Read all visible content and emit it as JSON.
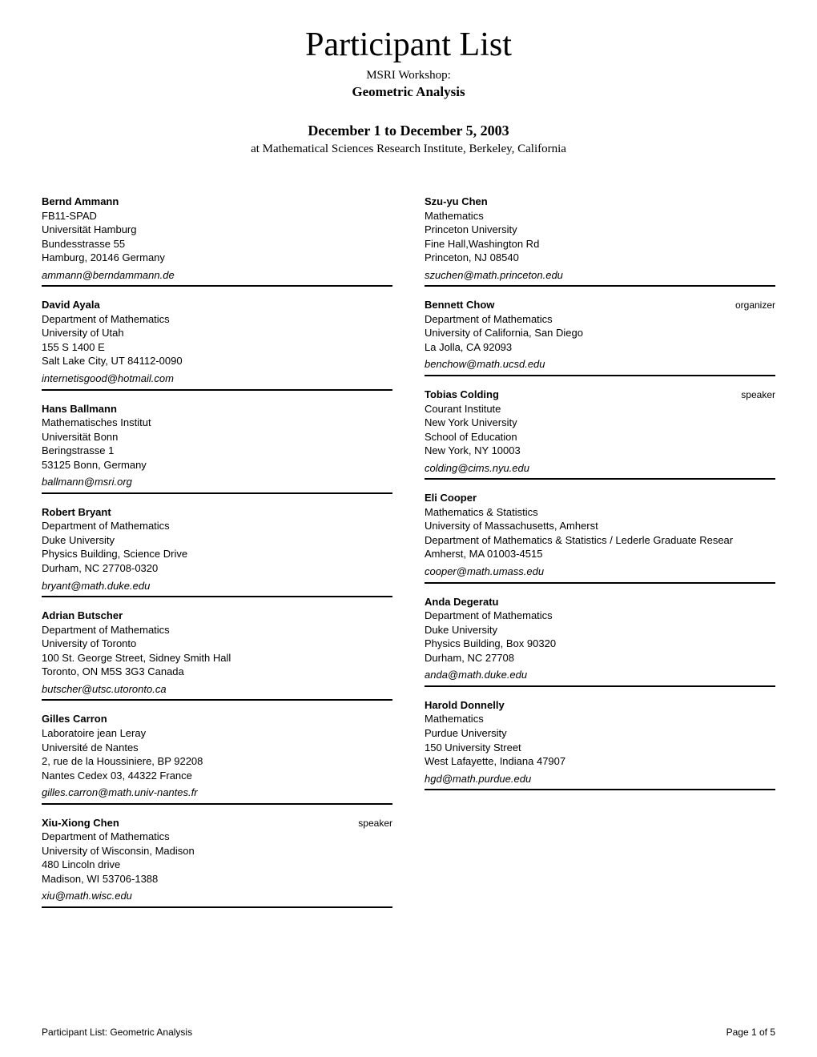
{
  "header": {
    "title": "Participant List",
    "workshop_label": "MSRI Workshop:",
    "workshop_name": "Geometric Analysis",
    "dates": "December 1 to December 5, 2003",
    "location": "at Mathematical Sciences Research Institute, Berkeley, California"
  },
  "footer": {
    "left": "Participant List:   Geometric Analysis",
    "right": "Page 1 of 5"
  },
  "left_col": [
    {
      "name": "Bernd Ammann",
      "lines": [
        "FB11-SPAD",
        "Universität Hamburg",
        "Bundesstrasse 55",
        "Hamburg,  20146    Germany"
      ],
      "email": "ammann@berndammann.de"
    },
    {
      "name": "David Ayala",
      "lines": [
        "Department of Mathematics",
        "University of Utah",
        "155 S 1400 E",
        "Salt Lake City, UT 84112-0090"
      ],
      "email": "internetisgood@hotmail.com"
    },
    {
      "name": "Hans Ballmann",
      "lines": [
        "Mathematisches Institut",
        "Universität Bonn",
        "Beringstrasse 1",
        "53125 Bonn,     Germany"
      ],
      "email": "ballmann@msri.org"
    },
    {
      "name": "Robert Bryant",
      "lines": [
        "Department of Mathematics",
        "Duke University",
        "Physics Building, Science Drive",
        "Durham, NC 27708-0320"
      ],
      "email": "bryant@math.duke.edu"
    },
    {
      "name": "Adrian Butscher",
      "lines": [
        "Department of Mathematics",
        "University of Toronto",
        "100 St. George Street, Sidney Smith Hall",
        "Toronto, ON M5S 3G3    Canada"
      ],
      "email": "butscher@utsc.utoronto.ca"
    },
    {
      "name": "Gilles Carron",
      "lines": [
        "Laboratoire jean Leray",
        "Université de Nantes",
        "2, rue de la Houssiniere, BP 92208",
        "Nantes Cedex 03,  44322    France"
      ],
      "email": "gilles.carron@math.univ-nantes.fr"
    },
    {
      "name": "Xiu-Xiong Chen",
      "role": "speaker",
      "lines": [
        "Department of Mathematics",
        "University of Wisconsin, Madison",
        "480 Lincoln drive",
        "Madison, WI 53706-1388"
      ],
      "email": "xiu@math.wisc.edu"
    }
  ],
  "right_col": [
    {
      "name": "Szu-yu  Chen",
      "lines": [
        "Mathematics",
        "Princeton University",
        "Fine Hall,Washington Rd",
        "Princeton, NJ 08540"
      ],
      "email": "szuchen@math.princeton.edu"
    },
    {
      "name": "Bennett Chow",
      "role": "organizer",
      "lines": [
        "Department of Mathematics",
        "University of California, San Diego",
        "La Jolla, CA 92093"
      ],
      "email": "benchow@math.ucsd.edu"
    },
    {
      "name": "Tobias Colding",
      "role": "speaker",
      "lines": [
        "Courant Institute",
        "New York University",
        "School of Education",
        "New York, NY 10003"
      ],
      "email": "colding@cims.nyu.edu"
    },
    {
      "name": "Eli Cooper",
      "lines": [
        "Mathematics & Statistics",
        "University of Massachusetts, Amherst",
        "Department of Mathematics & Statistics / Lederle Graduate Resear",
        "Amherst, MA 01003-4515"
      ],
      "email": "cooper@math.umass.edu"
    },
    {
      "name": "Anda Degeratu",
      "lines": [
        "Department of Mathematics",
        "Duke University",
        "Physics Building, Box 90320",
        "Durham, NC 27708"
      ],
      "email": "anda@math.duke.edu"
    },
    {
      "name": "Harold Donnelly",
      "lines": [
        "Mathematics",
        "Purdue University",
        "150 University Street",
        "West Lafayette, Indiana 47907"
      ],
      "email": "hgd@math.purdue.edu"
    }
  ]
}
